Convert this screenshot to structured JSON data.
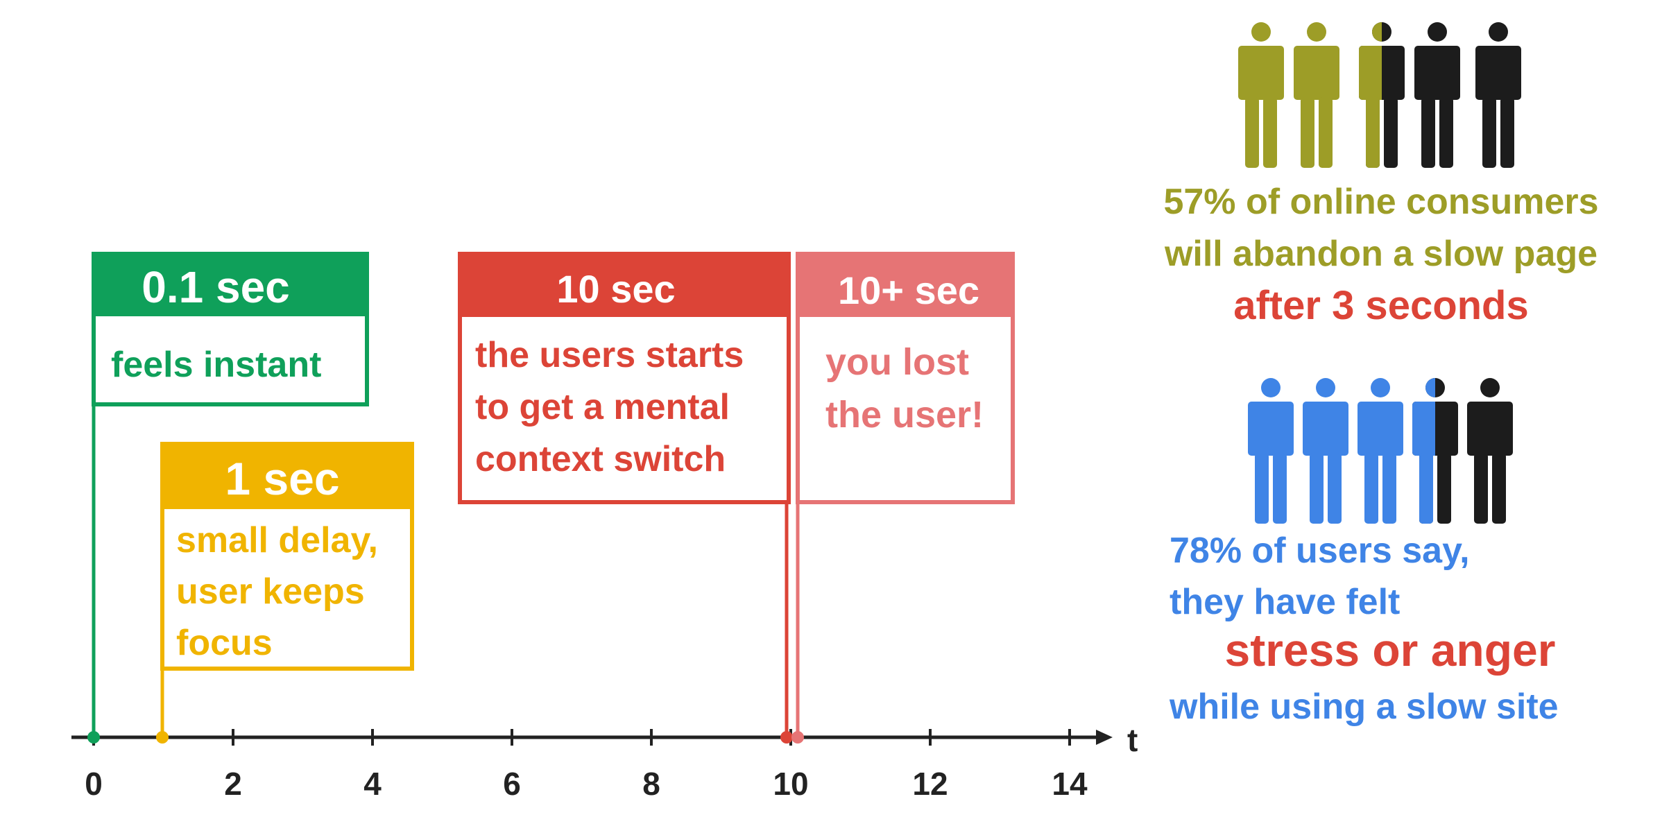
{
  "axis": {
    "label": "t",
    "ticks": [
      "0",
      "2",
      "4",
      "6",
      "8",
      "10",
      "12",
      "14"
    ]
  },
  "colors": {
    "green": "#0fa05a",
    "yellow": "#f0b400",
    "red": "#dc4437",
    "light_red": "#e67475",
    "olive": "#9d9d27",
    "blue": "#3f84e6",
    "black": "#1c1c1c",
    "axis": "#222222"
  },
  "flags": [
    {
      "key": "instant",
      "time": 0,
      "title": "0.1 sec",
      "lines": [
        "feels instant"
      ],
      "color": "green"
    },
    {
      "key": "one-sec",
      "time": 1,
      "title": "1 sec",
      "lines": [
        "small delay,",
        "user keeps",
        "focus"
      ],
      "color": "yellow"
    },
    {
      "key": "ten-sec",
      "time": 10,
      "title": "10 sec",
      "lines": [
        "the users starts",
        "to get a mental",
        "context switch"
      ],
      "color": "red"
    },
    {
      "key": "ten-plus-sec",
      "time": 10.15,
      "title": "10+ sec",
      "lines": [
        "you lost",
        "the user!"
      ],
      "color": "light_red"
    }
  ],
  "stats": [
    {
      "key": "abandon",
      "people_total": 5,
      "people_colored": 2.5,
      "color": "olive",
      "lines": [
        "57% of online consumers",
        "will abandon a slow page"
      ],
      "highlight": "after 3 seconds"
    },
    {
      "key": "stress",
      "people_total": 5,
      "people_colored": 3.5,
      "color": "blue",
      "lines": [
        "78% of users say,",
        "they have felt"
      ],
      "highlight": "stress or anger",
      "tail": "while using a slow site"
    }
  ]
}
